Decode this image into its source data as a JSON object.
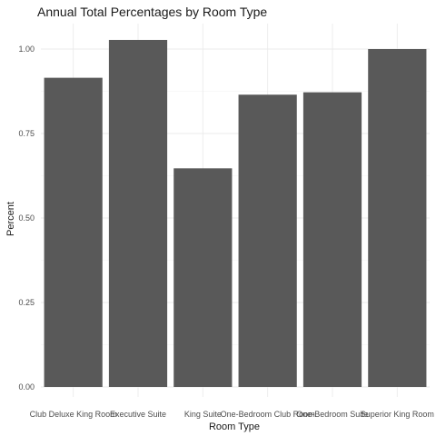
{
  "chart_data": {
    "type": "bar",
    "title": "Annual Total Percentages by Room Type",
    "xlabel": "Room Type",
    "ylabel": "Percent",
    "categories": [
      "Club Deluxe King Room",
      "Executive Suite",
      "King Suite",
      "One-Bedroom Club Room",
      "One-Bedroom Suite",
      "Superior King Room"
    ],
    "values": [
      0.915,
      1.027,
      0.647,
      0.865,
      0.872,
      1.0
    ],
    "ylim": [
      0,
      1.08
    ],
    "yticks": [
      "0.00",
      "0.25",
      "0.50",
      "0.75",
      "1.00"
    ],
    "grid": true,
    "bar_color": "#595959"
  }
}
